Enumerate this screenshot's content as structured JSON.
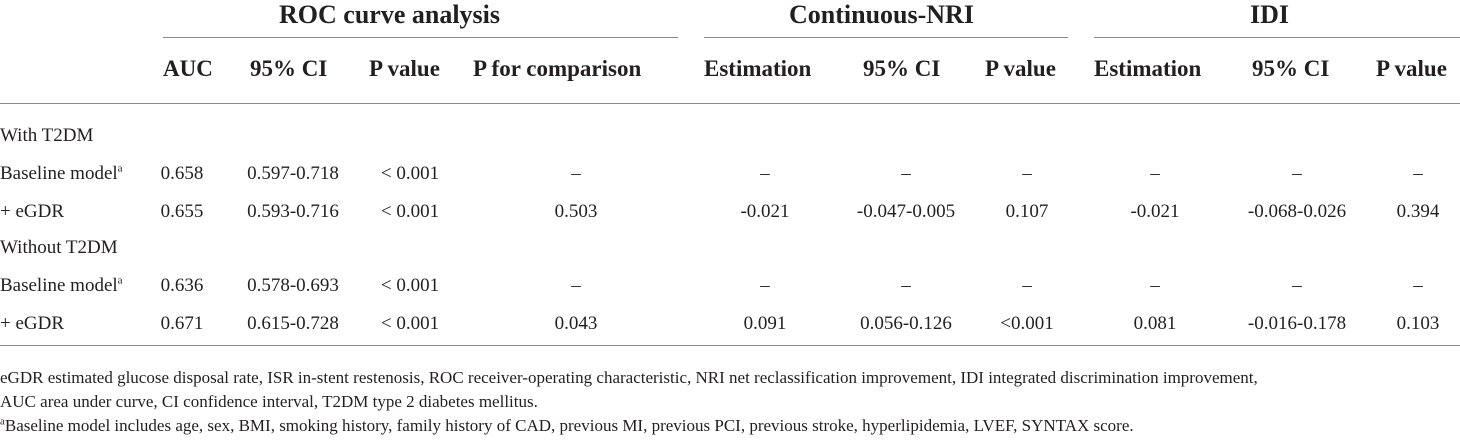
{
  "groups": {
    "roc": "ROC curve analysis",
    "nri": "Continuous-NRI",
    "idi": "IDI"
  },
  "headers": [
    "AUC",
    "95% CI",
    "P value",
    "P for comparison",
    "Estimation",
    "95% CI",
    "P value",
    "Estimation",
    "95% CI",
    "P value"
  ],
  "sections": [
    {
      "label": "With T2DM",
      "rows": [
        {
          "label": "Baseline model",
          "sup": "a",
          "cells": [
            "0.658",
            "0.597-0.718",
            "< 0.001",
            "–",
            "–",
            "–",
            "–",
            "–",
            "–",
            "–"
          ]
        },
        {
          "label": "+ eGDR",
          "sup": "",
          "cells": [
            "0.655",
            "0.593-0.716",
            "< 0.001",
            "0.503",
            "-0.021",
            "-0.047-0.005",
            "0.107",
            "-0.021",
            "-0.068-0.026",
            "0.394"
          ]
        }
      ]
    },
    {
      "label": "Without T2DM",
      "rows": [
        {
          "label": "Baseline model",
          "sup": "a",
          "cells": [
            "0.636",
            "0.578-0.693",
            "< 0.001",
            "–",
            "–",
            "–",
            "–",
            "–",
            "–",
            "–"
          ]
        },
        {
          "label": "+ eGDR",
          "sup": "",
          "cells": [
            "0.671",
            "0.615-0.728",
            "< 0.001",
            "0.043",
            "0.091",
            "0.056-0.126",
            "<0.001",
            "0.081",
            "-0.016-0.178",
            "0.103"
          ]
        }
      ]
    }
  ],
  "footnotes": {
    "line1": "eGDR estimated glucose disposal rate, ISR in-stent restenosis, ROC receiver-operating characteristic, NRI net reclassification improvement, IDI integrated discrimination improvement,",
    "line2": "AUC area under curve, CI confidence interval, T2DM type 2 diabetes mellitus.",
    "sup": "a",
    "line3": "Baseline model includes age, sex, BMI, smoking history, family history of CAD, previous MI, previous PCI, previous stroke, hyperlipidemia, LVEF, SYNTAX score."
  }
}
